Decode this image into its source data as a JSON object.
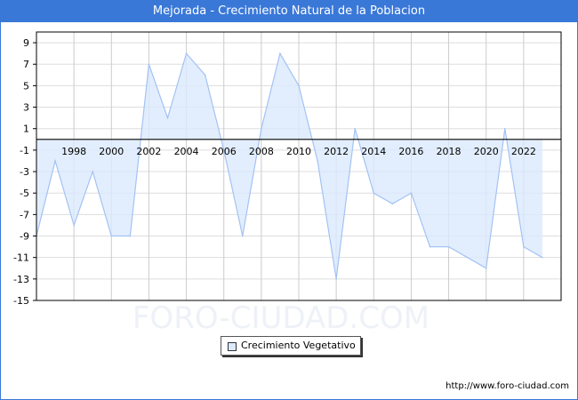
{
  "title": "Mejorada - Crecimiento Natural de la Poblacion",
  "watermark": "FORO-CIUDAD.COM",
  "footer_url": "http://www.foro-ciudad.com",
  "colors": {
    "accent": "#3a78d8",
    "fill": "#dbeafe",
    "line": "#a4c2f4"
  },
  "chart_data": {
    "type": "area",
    "title": "Mejorada - Crecimiento Natural de la Poblacion",
    "xlabel": "",
    "ylabel": "",
    "xlim": [
      1996,
      2024
    ],
    "ylim": [
      -15,
      10
    ],
    "grid": true,
    "legend_position": "bottom-center",
    "x": [
      1996,
      1997,
      1998,
      1999,
      2000,
      2001,
      2002,
      2003,
      2004,
      2005,
      2006,
      2007,
      2008,
      2009,
      2010,
      2011,
      2012,
      2013,
      2014,
      2015,
      2016,
      2017,
      2018,
      2019,
      2020,
      2021,
      2022,
      2023
    ],
    "series": [
      {
        "name": "Crecimiento Vegetativo",
        "values": [
          -9,
          -2,
          -8,
          -3,
          -9,
          -9,
          7,
          2,
          8,
          6,
          -1,
          -9,
          1,
          8,
          5,
          -2,
          -13,
          1,
          -5,
          -6,
          -5,
          -10,
          -10,
          -11,
          -12,
          1,
          -10,
          -11
        ]
      }
    ],
    "xticks": [
      "1998",
      "2000",
      "2002",
      "2004",
      "2006",
      "2008",
      "2010",
      "2012",
      "2014",
      "2016",
      "2018",
      "2020",
      "2022"
    ],
    "yticks": [
      "9",
      "7",
      "5",
      "3",
      "1",
      "-1",
      "-3",
      "-5",
      "-7",
      "-9",
      "-11",
      "-13",
      "-15"
    ]
  }
}
